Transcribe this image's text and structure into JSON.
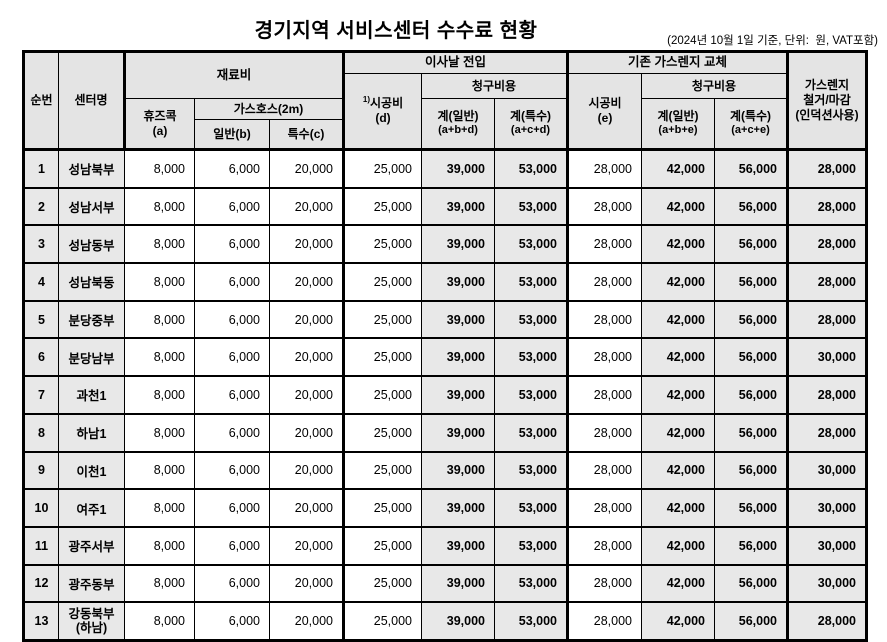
{
  "title": "경기지역 서비스센터 수수료 현황",
  "note": "(2024년 10월 1일 기준, 단위:  원, VAT포함)",
  "header": {
    "no": "순번",
    "center_name": "센터명",
    "material_group": "재료비",
    "fuse_cock": "휴즈콕",
    "fuse_cock_code": "(a)",
    "gas_hose": "가스호스(2m)",
    "hose_normal": "일반(b)",
    "hose_special": "특수(c)",
    "move_in_group": "이사날 전입",
    "move_cost_sup": "1)",
    "move_cost": "시공비",
    "move_cost_code": "(d)",
    "billing_d": "청구비용",
    "d_total_normal": "계(일반)",
    "d_total_normal_code": "(a+b+d)",
    "d_total_special": "계(특수)",
    "d_total_special_code": "(a+c+d)",
    "replace_group": "기존 가스렌지 교체",
    "replace_cost": "시공비",
    "replace_cost_code": "(e)",
    "billing_e": "청구비용",
    "e_total_normal": "계(일반)",
    "e_total_normal_code": "(a+b+e)",
    "e_total_special": "계(특수)",
    "e_total_special_code": "(a+c+e)",
    "removal": "가스렌지\n철거/마감\n(인덕션사용)"
  },
  "table": {
    "rows": [
      {
        "no": "1",
        "name": "성남북부",
        "a": "8,000",
        "b": "6,000",
        "c": "20,000",
        "d": "25,000",
        "abd": "39,000",
        "acd": "53,000",
        "e": "28,000",
        "abe": "42,000",
        "ace": "56,000",
        "removal": "28,000"
      },
      {
        "no": "2",
        "name": "성남서부",
        "a": "8,000",
        "b": "6,000",
        "c": "20,000",
        "d": "25,000",
        "abd": "39,000",
        "acd": "53,000",
        "e": "28,000",
        "abe": "42,000",
        "ace": "56,000",
        "removal": "28,000"
      },
      {
        "no": "3",
        "name": "성남동부",
        "a": "8,000",
        "b": "6,000",
        "c": "20,000",
        "d": "25,000",
        "abd": "39,000",
        "acd": "53,000",
        "e": "28,000",
        "abe": "42,000",
        "ace": "56,000",
        "removal": "28,000"
      },
      {
        "no": "4",
        "name": "성남북동",
        "a": "8,000",
        "b": "6,000",
        "c": "20,000",
        "d": "25,000",
        "abd": "39,000",
        "acd": "53,000",
        "e": "28,000",
        "abe": "42,000",
        "ace": "56,000",
        "removal": "28,000"
      },
      {
        "no": "5",
        "name": "분당중부",
        "a": "8,000",
        "b": "6,000",
        "c": "20,000",
        "d": "25,000",
        "abd": "39,000",
        "acd": "53,000",
        "e": "28,000",
        "abe": "42,000",
        "ace": "56,000",
        "removal": "28,000"
      },
      {
        "no": "6",
        "name": "분당남부",
        "a": "8,000",
        "b": "6,000",
        "c": "20,000",
        "d": "25,000",
        "abd": "39,000",
        "acd": "53,000",
        "e": "28,000",
        "abe": "42,000",
        "ace": "56,000",
        "removal": "30,000"
      },
      {
        "no": "7",
        "name": "과천1",
        "a": "8,000",
        "b": "6,000",
        "c": "20,000",
        "d": "25,000",
        "abd": "39,000",
        "acd": "53,000",
        "e": "28,000",
        "abe": "42,000",
        "ace": "56,000",
        "removal": "28,000"
      },
      {
        "no": "8",
        "name": "하남1",
        "a": "8,000",
        "b": "6,000",
        "c": "20,000",
        "d": "25,000",
        "abd": "39,000",
        "acd": "53,000",
        "e": "28,000",
        "abe": "42,000",
        "ace": "56,000",
        "removal": "28,000"
      },
      {
        "no": "9",
        "name": "이천1",
        "a": "8,000",
        "b": "6,000",
        "c": "20,000",
        "d": "25,000",
        "abd": "39,000",
        "acd": "53,000",
        "e": "28,000",
        "abe": "42,000",
        "ace": "56,000",
        "removal": "30,000"
      },
      {
        "no": "10",
        "name": "여주1",
        "a": "8,000",
        "b": "6,000",
        "c": "20,000",
        "d": "25,000",
        "abd": "39,000",
        "acd": "53,000",
        "e": "28,000",
        "abe": "42,000",
        "ace": "56,000",
        "removal": "30,000"
      },
      {
        "no": "11",
        "name": "광주서부",
        "a": "8,000",
        "b": "6,000",
        "c": "20,000",
        "d": "25,000",
        "abd": "39,000",
        "acd": "53,000",
        "e": "28,000",
        "abe": "42,000",
        "ace": "56,000",
        "removal": "30,000"
      },
      {
        "no": "12",
        "name": "광주동부",
        "a": "8,000",
        "b": "6,000",
        "c": "20,000",
        "d": "25,000",
        "abd": "39,000",
        "acd": "53,000",
        "e": "28,000",
        "abe": "42,000",
        "ace": "56,000",
        "removal": "30,000"
      },
      {
        "no": "13",
        "name": "강동북부",
        "name2": "(하남)",
        "a": "8,000",
        "b": "6,000",
        "c": "20,000",
        "d": "25,000",
        "abd": "39,000",
        "acd": "53,000",
        "e": "28,000",
        "abe": "42,000",
        "ace": "56,000",
        "removal": "28,000"
      }
    ]
  },
  "colors": {
    "header_bg": "#e4e4e4",
    "shaded_cell_bg": "#e8e8e8",
    "border": "#000000",
    "text": "#000000"
  }
}
